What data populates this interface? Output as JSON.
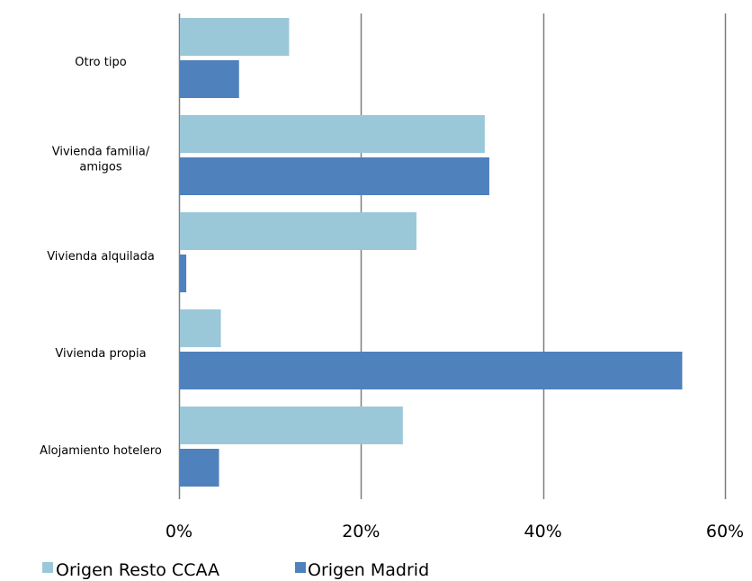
{
  "chart_data": {
    "type": "bar",
    "orientation": "horizontal",
    "categories": [
      [
        "Otro tipo"
      ],
      [
        "Vivienda familia/",
        "amigos"
      ],
      [
        "Vivienda alquilada"
      ],
      [
        "Vivienda propia"
      ],
      [
        "Alojamiento hotelero"
      ]
    ],
    "series": [
      {
        "name": "Origen Resto CCAA",
        "color": "#9BC8D8",
        "values": [
          12.0,
          33.5,
          26.0,
          4.5,
          24.5
        ]
      },
      {
        "name": "Origen Madrid",
        "color": "#4F81BD",
        "values": [
          6.5,
          34.0,
          0.7,
          55.2,
          4.3
        ]
      }
    ],
    "xlim": [
      0,
      60
    ],
    "xticks": [
      0,
      20,
      40,
      60
    ],
    "xtick_labels": [
      "0%",
      "20%",
      "40%",
      "60%"
    ],
    "grid": true,
    "legend_position": "bottom-left",
    "gridline_color": "#7F7F7F"
  }
}
